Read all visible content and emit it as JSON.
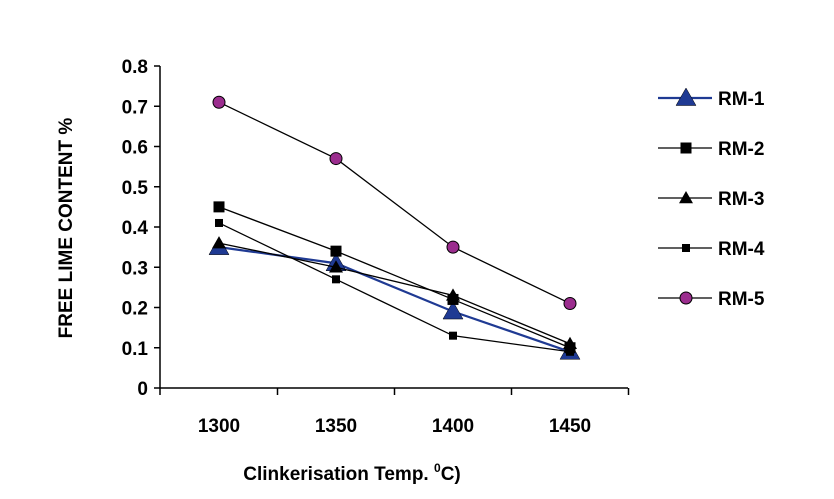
{
  "chart_data": {
    "type": "line",
    "xlabel": "Clinkerisation Temp. ",
    "xlabel_sup": "0",
    "xlabel_suffix": "C)",
    "ylabel": "FREE LIME CONTENT %",
    "x": [
      1300,
      1350,
      1400,
      1450
    ],
    "x_tick_labels": [
      "1300",
      "1350",
      "1400",
      "1450"
    ],
    "ylim": [
      0,
      0.8
    ],
    "y_ticks": [
      0,
      0.1,
      0.2,
      0.3,
      0.4,
      0.5,
      0.6,
      0.7,
      0.8
    ],
    "y_tick_labels": [
      "0",
      "0.1",
      "0.2",
      "0.3",
      "0.4",
      "0.5",
      "0.6",
      "0.7",
      "0.8"
    ],
    "grid": false,
    "legend_position": "right",
    "series": [
      {
        "name": "RM-1",
        "values": [
          0.35,
          0.31,
          0.19,
          0.09
        ],
        "color": "#1f3a93",
        "marker": "triangle-large",
        "marker_color": "#1f3a93"
      },
      {
        "name": "RM-2",
        "values": [
          0.45,
          0.34,
          0.22,
          0.1
        ],
        "color": "#000000",
        "marker": "square",
        "marker_color": "#000000"
      },
      {
        "name": "RM-3",
        "values": [
          0.36,
          0.3,
          0.23,
          0.11
        ],
        "color": "#000000",
        "marker": "triangle",
        "marker_color": "#000000"
      },
      {
        "name": "RM-4",
        "values": [
          0.41,
          0.27,
          0.13,
          0.09
        ],
        "color": "#000000",
        "marker": "square-small",
        "marker_color": "#000000"
      },
      {
        "name": "RM-5",
        "values": [
          0.71,
          0.57,
          0.35,
          0.21
        ],
        "color": "#000000",
        "marker": "circle",
        "marker_color": "#9b2d8e"
      }
    ]
  }
}
